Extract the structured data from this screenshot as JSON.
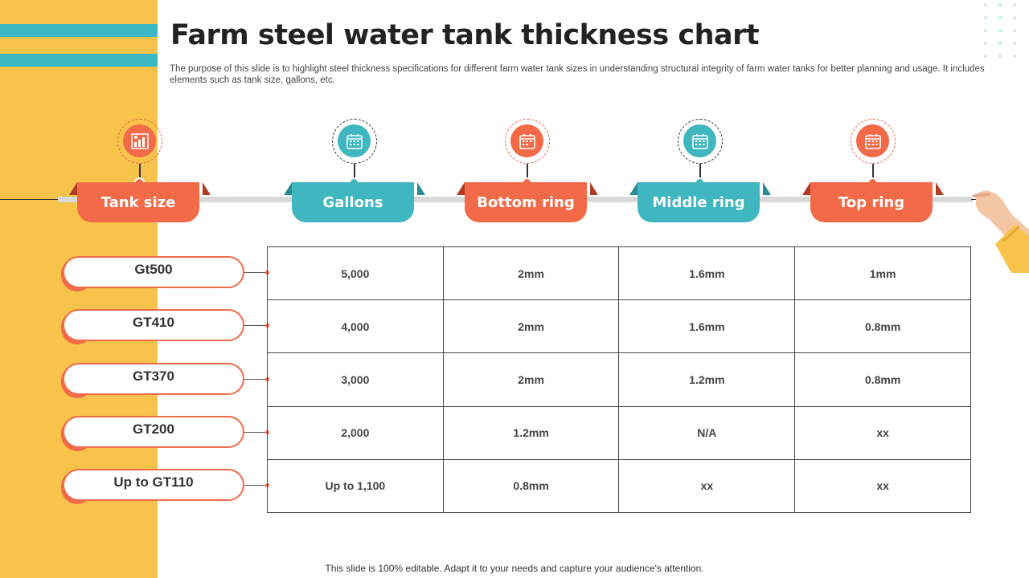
{
  "slide": {
    "title": "Farm steel water tank thickness chart",
    "description": "The purpose of this slide is to highlight steel thickness specifications for different farm water tank sizes in understanding structural integrity of farm water tanks for better planning and usage. It includes elements such as tank size, gallons, etc.",
    "footer": "This slide is 100% editable. Adapt it to your needs and capture your audience's attention."
  },
  "colors": {
    "orange": "#f26a47",
    "teal": "#3fb6c0",
    "yellow": "#f7c34a"
  },
  "headers": [
    {
      "label": "Tank size",
      "icon": "bar-chart-icon",
      "color": "orange"
    },
    {
      "label": "Gallons",
      "icon": "calendar-icon",
      "color": "teal"
    },
    {
      "label": "Bottom ring",
      "icon": "calendar-icon",
      "color": "orange"
    },
    {
      "label": "Middle ring",
      "icon": "calendar-icon",
      "color": "teal"
    },
    {
      "label": "Top ring",
      "icon": "calendar-icon",
      "color": "orange"
    }
  ],
  "rows": [
    {
      "tank_size": "Gt500",
      "gallons": "5,000",
      "bottom": "2mm",
      "middle": "1.6mm",
      "top": "1mm"
    },
    {
      "tank_size": "GT410",
      "gallons": "4,000",
      "bottom": "2mm",
      "middle": "1.6mm",
      "top": "0.8mm"
    },
    {
      "tank_size": "GT370",
      "gallons": "3,000",
      "bottom": "2mm",
      "middle": "1.2mm",
      "top": "0.8mm"
    },
    {
      "tank_size": "GT200",
      "gallons": "2,000",
      "bottom": "1.2mm",
      "middle": "N/A",
      "top": "xx"
    },
    {
      "tank_size": "Up to GT110",
      "gallons": "Up to 1,100",
      "bottom": "0.8mm",
      "middle": "xx",
      "top": "xx"
    }
  ]
}
